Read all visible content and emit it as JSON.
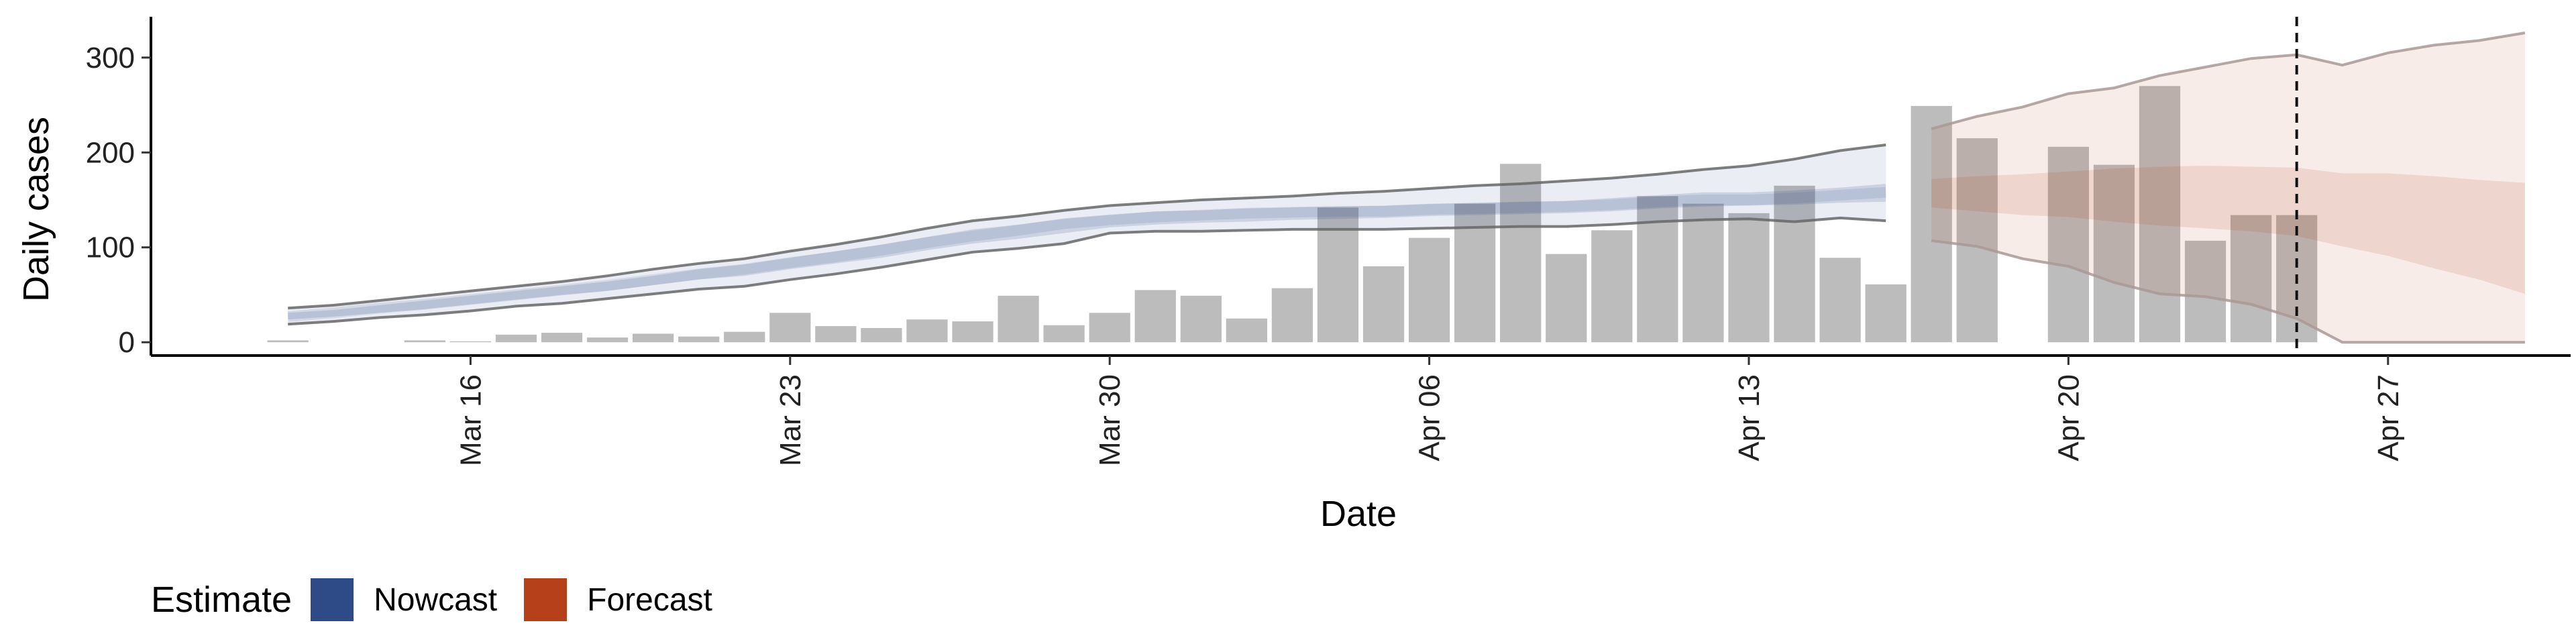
{
  "chart_data": {
    "type": "bar",
    "xlabel": "Date",
    "ylabel": "Daily cases",
    "x_ticks": [
      "Mar 16",
      "Mar 23",
      "Mar 30",
      "Apr 06",
      "Apr 13",
      "Apr 20",
      "Apr 27"
    ],
    "y_ticks": [
      0,
      100,
      200,
      300
    ],
    "ylim": [
      -14,
      343
    ],
    "xlim": [
      "2020-03-09",
      "2020-05-01"
    ],
    "grid": false,
    "legend_position": "bottom-left",
    "reference_line": {
      "date": "2020-04-25",
      "style": "dashed"
    },
    "observed": {
      "color": "#b0b0b0",
      "dates": [
        "2020-03-12",
        "2020-03-15",
        "2020-03-16",
        "2020-03-17",
        "2020-03-18",
        "2020-03-19",
        "2020-03-20",
        "2020-03-21",
        "2020-03-22",
        "2020-03-23",
        "2020-03-24",
        "2020-03-25",
        "2020-03-26",
        "2020-03-27",
        "2020-03-28",
        "2020-03-29",
        "2020-03-30",
        "2020-03-31",
        "2020-04-01",
        "2020-04-02",
        "2020-04-03",
        "2020-04-04",
        "2020-04-05",
        "2020-04-06",
        "2020-04-07",
        "2020-04-08",
        "2020-04-09",
        "2020-04-10",
        "2020-04-11",
        "2020-04-12",
        "2020-04-13",
        "2020-04-14",
        "2020-04-15",
        "2020-04-16",
        "2020-04-17",
        "2020-04-18",
        "2020-04-20",
        "2020-04-21",
        "2020-04-22",
        "2020-04-23",
        "2020-04-24",
        "2020-04-25"
      ],
      "values": [
        2,
        2,
        1,
        8,
        10,
        5,
        9,
        6,
        11,
        31,
        17,
        15,
        24,
        22,
        49,
        18,
        31,
        55,
        49,
        25,
        57,
        142,
        80,
        110,
        146,
        188,
        93,
        118,
        154,
        146,
        136,
        165,
        89,
        61,
        249,
        215,
        206,
        187,
        270,
        107,
        134,
        134
      ]
    },
    "series": [
      {
        "name": "Nowcast",
        "color": "#2e4a87",
        "dates": [
          "2020-03-12",
          "2020-03-13",
          "2020-03-14",
          "2020-03-15",
          "2020-03-16",
          "2020-03-17",
          "2020-03-18",
          "2020-03-19",
          "2020-03-20",
          "2020-03-21",
          "2020-03-22",
          "2020-03-23",
          "2020-03-24",
          "2020-03-25",
          "2020-03-26",
          "2020-03-27",
          "2020-03-28",
          "2020-03-29",
          "2020-03-30",
          "2020-03-31",
          "2020-04-01",
          "2020-04-02",
          "2020-04-03",
          "2020-04-04",
          "2020-04-05",
          "2020-04-06",
          "2020-04-07",
          "2020-04-08",
          "2020-04-09",
          "2020-04-10",
          "2020-04-11",
          "2020-04-12",
          "2020-04-13",
          "2020-04-14",
          "2020-04-15",
          "2020-04-16"
        ],
        "median": [
          27,
          31,
          36,
          40,
          45,
          50,
          55,
          60,
          66,
          72,
          77,
          84,
          90,
          97,
          105,
          112,
          118,
          125,
          129,
          132,
          134,
          136,
          137,
          138,
          138,
          140,
          141,
          142,
          143,
          145,
          148,
          150,
          150,
          152,
          155,
          158
        ],
        "lower_90": [
          19,
          22,
          26,
          29,
          33,
          38,
          41,
          46,
          51,
          56,
          59,
          66,
          72,
          79,
          87,
          95,
          99,
          104,
          115,
          117,
          117,
          118,
          119,
          119,
          119,
          120,
          121,
          122,
          122,
          124,
          127,
          129,
          130,
          127,
          131,
          128
        ],
        "upper_90": [
          36,
          39,
          44,
          49,
          54,
          59,
          64,
          70,
          77,
          83,
          88,
          96,
          103,
          111,
          120,
          128,
          133,
          139,
          144,
          147,
          150,
          152,
          154,
          157,
          159,
          162,
          165,
          167,
          170,
          173,
          177,
          182,
          186,
          193,
          202,
          208
        ],
        "lower_50": [
          24,
          27,
          31,
          35,
          40,
          45,
          50,
          54,
          60,
          66,
          70,
          77,
          83,
          89,
          97,
          104,
          109,
          115,
          121,
          124,
          126,
          127,
          129,
          130,
          131,
          133,
          134,
          135,
          136,
          138,
          141,
          143,
          144,
          145,
          147,
          148
        ],
        "upper_50": [
          31,
          34,
          39,
          44,
          49,
          54,
          59,
          64,
          70,
          77,
          82,
          89,
          96,
          103,
          111,
          119,
          124,
          130,
          134,
          138,
          139,
          141,
          142,
          143,
          144,
          146,
          147,
          148,
          149,
          152,
          155,
          158,
          158,
          160,
          163,
          167
        ]
      },
      {
        "name": "Forecast",
        "color": "#b5401a",
        "dates": [
          "2020-04-17",
          "2020-04-18",
          "2020-04-19",
          "2020-04-20",
          "2020-04-21",
          "2020-04-22",
          "2020-04-23",
          "2020-04-24",
          "2020-04-25",
          "2020-04-26",
          "2020-04-27",
          "2020-04-28",
          "2020-04-29",
          "2020-04-30"
        ],
        "lower_90": [
          107,
          101,
          88,
          80,
          63,
          51,
          48,
          40,
          25,
          0,
          0,
          0,
          0,
          0
        ],
        "upper_90": [
          225,
          238,
          248,
          262,
          268,
          281,
          290,
          299,
          303,
          292,
          305,
          313,
          318,
          326
        ],
        "lower_50": [
          142,
          138,
          134,
          132,
          127,
          123,
          120,
          117,
          112,
          101,
          91,
          78,
          66,
          51
        ],
        "upper_50": [
          172,
          175,
          177,
          180,
          183,
          185,
          186,
          185,
          184,
          178,
          178,
          175,
          171,
          168
        ]
      }
    ]
  },
  "legend": {
    "title": "Estimate",
    "items": [
      {
        "label": "Nowcast",
        "color": "#2e4a87"
      },
      {
        "label": "Forecast",
        "color": "#b5401a"
      }
    ]
  }
}
